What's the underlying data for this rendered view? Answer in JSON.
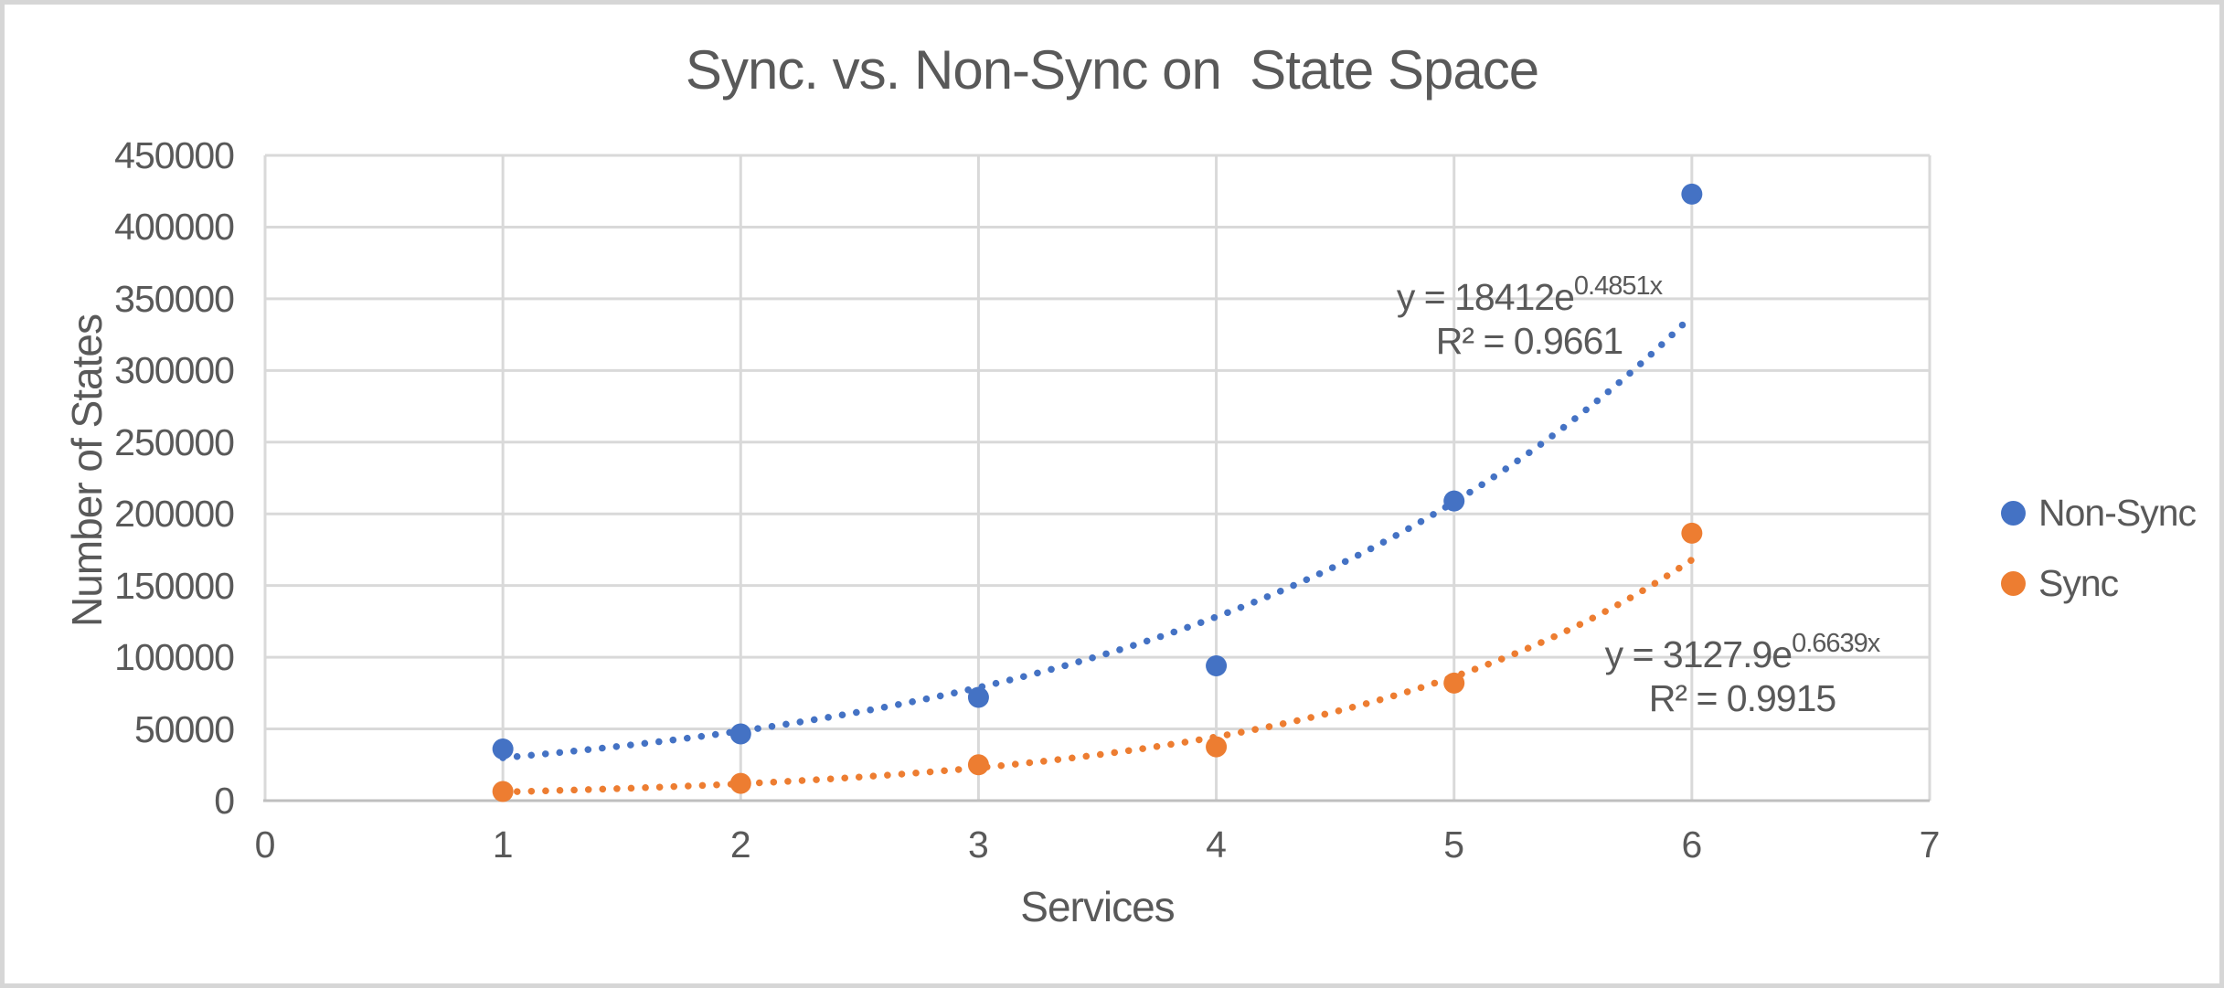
{
  "chart_data": {
    "type": "scatter",
    "title": "Sync. vs. Non-Sync on  State Space",
    "xlabel": "Services",
    "ylabel": "Number of States",
    "xlim": [
      0,
      7
    ],
    "ylim": [
      0,
      450000
    ],
    "x_ticks": [
      "0",
      "1",
      "2",
      "3",
      "4",
      "5",
      "6",
      "7"
    ],
    "y_ticks": [
      "0",
      "50000",
      "100000",
      "150000",
      "200000",
      "250000",
      "300000",
      "350000",
      "400000",
      "450000"
    ],
    "grid": true,
    "legend_position": "right-middle",
    "x": [
      1,
      2,
      3,
      4,
      5,
      6
    ],
    "series": [
      {
        "name": "Non-Sync",
        "color": "#4472C4",
        "marker": "circle",
        "values": [
          36000,
          46500,
          72000,
          94000,
          209000,
          423000
        ],
        "trendline": {
          "type": "exponential",
          "a": 18412,
          "b": 0.4851,
          "x_range": [
            1,
            6
          ],
          "line_style": "dotted",
          "equation_base": "y = 18412e",
          "equation_exponent": "0.4851x",
          "r_squared_label": "R² = 0.9661"
        }
      },
      {
        "name": "Sync",
        "color": "#ED7D31",
        "marker": "circle",
        "values": [
          6400,
          12000,
          25000,
          37500,
          82000,
          186500
        ],
        "trendline": {
          "type": "exponential",
          "a": 3127.9,
          "b": 0.6639,
          "x_range": [
            1,
            6
          ],
          "line_style": "dotted",
          "equation_base": "y = 3127.9e",
          "equation_exponent": "0.6639x",
          "r_squared_label": "R² = 0.9915"
        }
      }
    ],
    "colors": {
      "text": "#595959",
      "gridline": "#D9D9D9",
      "axis_line": "#BFBFBF",
      "background": "#FFFFFF",
      "frame_border": "#D6D6D6"
    }
  }
}
